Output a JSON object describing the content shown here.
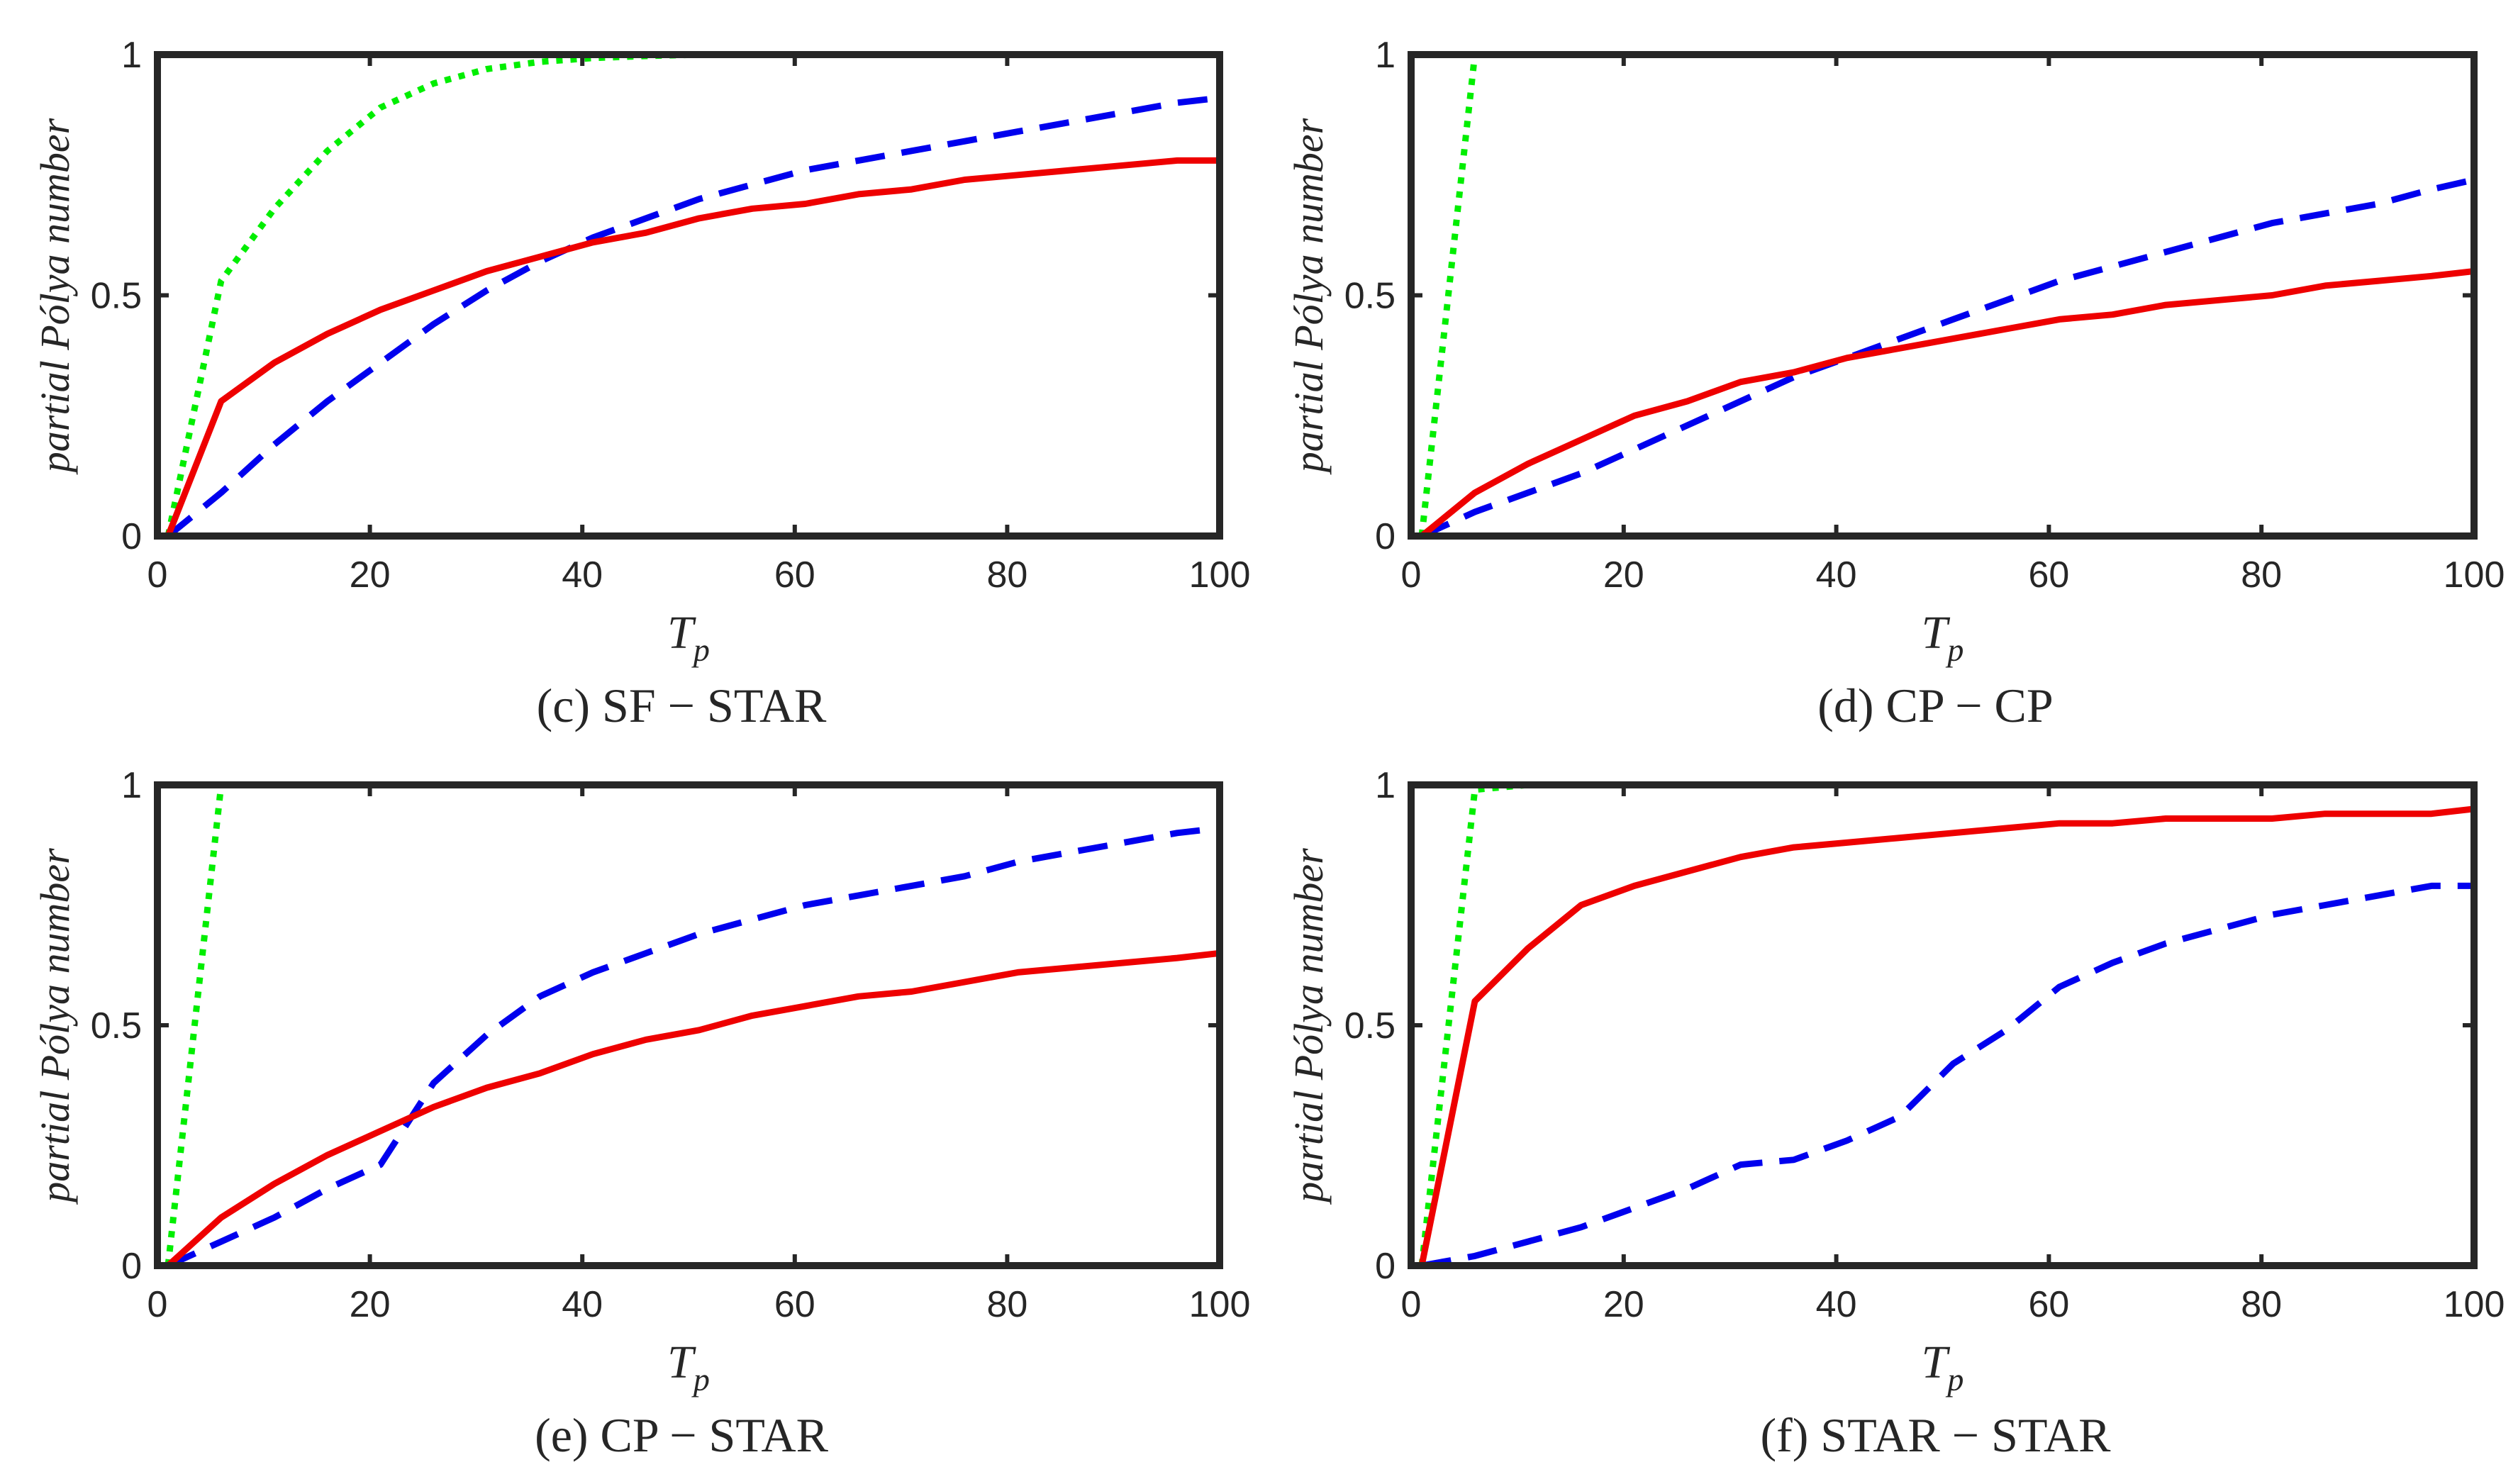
{
  "figure": {
    "colors": {
      "frame": "#262626",
      "green": "#00ee00",
      "blue": "#0000ee",
      "red": "#ee0000"
    }
  },
  "chart_data": [
    {
      "type": "line",
      "caption": "(c) SF − STAR",
      "xlabel": "T_p",
      "xlabel_main": "T",
      "xlabel_sub": "p",
      "ylabel": "partial Pólya number",
      "xlim": [
        0,
        100
      ],
      "ylim": [
        0,
        1
      ],
      "xticks": [
        0,
        20,
        40,
        60,
        80,
        100
      ],
      "yticks": [
        0,
        0.5,
        1
      ],
      "ytick_labels": [
        "0",
        "0.5",
        "1"
      ],
      "series": [
        {
          "name": "green dotted",
          "color": "#00ee00",
          "style": "dotted",
          "x": [
            1,
            6,
            11,
            16,
            21,
            26,
            31,
            36,
            41,
            46,
            51,
            100
          ],
          "y": [
            0,
            0.53,
            0.68,
            0.8,
            0.89,
            0.94,
            0.97,
            0.985,
            0.993,
            0.997,
            1.0,
            1.0
          ]
        },
        {
          "name": "blue dashed",
          "color": "#0000ee",
          "style": "dashed",
          "x": [
            1,
            6,
            11,
            16,
            21,
            26,
            31,
            36,
            41,
            46,
            51,
            56,
            61,
            66,
            71,
            76,
            81,
            86,
            91,
            96,
            100
          ],
          "y": [
            0,
            0.09,
            0.19,
            0.28,
            0.36,
            0.44,
            0.51,
            0.57,
            0.62,
            0.66,
            0.7,
            0.73,
            0.76,
            0.78,
            0.8,
            0.82,
            0.84,
            0.86,
            0.88,
            0.9,
            0.91
          ]
        },
        {
          "name": "red solid",
          "color": "#ee0000",
          "style": "solid",
          "x": [
            1,
            6,
            11,
            16,
            21,
            26,
            31,
            36,
            41,
            46,
            51,
            56,
            61,
            66,
            71,
            76,
            81,
            86,
            91,
            96,
            100
          ],
          "y": [
            0,
            0.28,
            0.36,
            0.42,
            0.47,
            0.51,
            0.55,
            0.58,
            0.61,
            0.63,
            0.66,
            0.68,
            0.69,
            0.71,
            0.72,
            0.74,
            0.75,
            0.76,
            0.77,
            0.78,
            0.78
          ]
        }
      ]
    },
    {
      "type": "line",
      "caption": "(d) CP − CP",
      "xlabel": "T_p",
      "xlabel_main": "T",
      "xlabel_sub": "p",
      "ylabel": "partial Pólya number",
      "xlim": [
        0,
        100
      ],
      "ylim": [
        0,
        1
      ],
      "xticks": [
        0,
        20,
        40,
        60,
        80,
        100
      ],
      "yticks": [
        0,
        0.5,
        1
      ],
      "ytick_labels": [
        "0",
        "0.5",
        "1"
      ],
      "series": [
        {
          "name": "green dotted",
          "color": "#00ee00",
          "style": "dotted",
          "x": [
            1,
            6,
            100
          ],
          "y": [
            0,
            1.0,
            1.0
          ]
        },
        {
          "name": "blue dashed",
          "color": "#0000ee",
          "style": "dashed",
          "x": [
            1,
            6,
            11,
            16,
            21,
            26,
            31,
            36,
            41,
            46,
            51,
            56,
            61,
            66,
            71,
            76,
            81,
            86,
            91,
            96,
            100
          ],
          "y": [
            0,
            0.05,
            0.09,
            0.13,
            0.18,
            0.23,
            0.28,
            0.33,
            0.37,
            0.41,
            0.45,
            0.49,
            0.53,
            0.56,
            0.59,
            0.62,
            0.65,
            0.67,
            0.69,
            0.72,
            0.74
          ]
        },
        {
          "name": "red solid",
          "color": "#ee0000",
          "style": "solid",
          "x": [
            1,
            6,
            11,
            16,
            21,
            26,
            31,
            36,
            41,
            46,
            51,
            56,
            61,
            66,
            71,
            76,
            81,
            86,
            91,
            96,
            100
          ],
          "y": [
            0,
            0.09,
            0.15,
            0.2,
            0.25,
            0.28,
            0.32,
            0.34,
            0.37,
            0.39,
            0.41,
            0.43,
            0.45,
            0.46,
            0.48,
            0.49,
            0.5,
            0.52,
            0.53,
            0.54,
            0.55
          ]
        }
      ]
    },
    {
      "type": "line",
      "caption": "(e) CP − STAR",
      "xlabel": "T_p",
      "xlabel_main": "T",
      "xlabel_sub": "p",
      "ylabel": "partial Pólya number",
      "xlim": [
        0,
        100
      ],
      "ylim": [
        0,
        1
      ],
      "xticks": [
        0,
        20,
        40,
        60,
        80,
        100
      ],
      "yticks": [
        0,
        0.5,
        1
      ],
      "ytick_labels": [
        "0",
        "0.5",
        "1"
      ],
      "series": [
        {
          "name": "green dotted",
          "color": "#00ee00",
          "style": "dotted",
          "x": [
            1,
            6,
            100
          ],
          "y": [
            0,
            1.0,
            1.0
          ]
        },
        {
          "name": "blue dashed",
          "color": "#0000ee",
          "style": "dashed",
          "x": [
            1,
            6,
            11,
            16,
            21,
            26,
            31,
            36,
            41,
            46,
            51,
            56,
            61,
            66,
            71,
            76,
            81,
            86,
            91,
            96,
            100
          ],
          "y": [
            0,
            0.05,
            0.1,
            0.16,
            0.21,
            0.38,
            0.48,
            0.56,
            0.61,
            0.65,
            0.69,
            0.72,
            0.75,
            0.77,
            0.79,
            0.81,
            0.84,
            0.86,
            0.88,
            0.9,
            0.91
          ]
        },
        {
          "name": "red solid",
          "color": "#ee0000",
          "style": "solid",
          "x": [
            1,
            6,
            11,
            16,
            21,
            26,
            31,
            36,
            41,
            46,
            51,
            56,
            61,
            66,
            71,
            76,
            81,
            86,
            91,
            96,
            100
          ],
          "y": [
            0,
            0.1,
            0.17,
            0.23,
            0.28,
            0.33,
            0.37,
            0.4,
            0.44,
            0.47,
            0.49,
            0.52,
            0.54,
            0.56,
            0.57,
            0.59,
            0.61,
            0.62,
            0.63,
            0.64,
            0.65
          ]
        }
      ]
    },
    {
      "type": "line",
      "caption": "(f) STAR − STAR",
      "xlabel": "T_p",
      "xlabel_main": "T",
      "xlabel_sub": "p",
      "ylabel": "partial Pólya number",
      "xlim": [
        0,
        100
      ],
      "ylim": [
        0,
        1
      ],
      "xticks": [
        0,
        20,
        40,
        60,
        80,
        100
      ],
      "yticks": [
        0,
        0.5,
        1
      ],
      "ytick_labels": [
        "0",
        "0.5",
        "1"
      ],
      "series": [
        {
          "name": "green dotted",
          "color": "#00ee00",
          "style": "dotted",
          "x": [
            1,
            6,
            11,
            100
          ],
          "y": [
            0,
            0.99,
            1.0,
            1.0
          ]
        },
        {
          "name": "blue dashed",
          "color": "#0000ee",
          "style": "dashed",
          "x": [
            1,
            6,
            11,
            16,
            21,
            26,
            31,
            36,
            41,
            46,
            51,
            56,
            61,
            66,
            71,
            76,
            81,
            86,
            91,
            96,
            100
          ],
          "y": [
            0,
            0.02,
            0.05,
            0.08,
            0.12,
            0.16,
            0.21,
            0.22,
            0.26,
            0.31,
            0.42,
            0.49,
            0.58,
            0.63,
            0.67,
            0.7,
            0.73,
            0.75,
            0.77,
            0.79,
            0.79
          ]
        },
        {
          "name": "red solid",
          "color": "#ee0000",
          "style": "solid",
          "x": [
            1,
            6,
            11,
            16,
            21,
            26,
            31,
            36,
            41,
            46,
            51,
            56,
            61,
            66,
            71,
            76,
            81,
            86,
            91,
            96,
            100
          ],
          "y": [
            0,
            0.55,
            0.66,
            0.75,
            0.79,
            0.82,
            0.85,
            0.87,
            0.88,
            0.89,
            0.9,
            0.91,
            0.92,
            0.92,
            0.93,
            0.93,
            0.93,
            0.94,
            0.94,
            0.94,
            0.95
          ]
        }
      ]
    }
  ]
}
